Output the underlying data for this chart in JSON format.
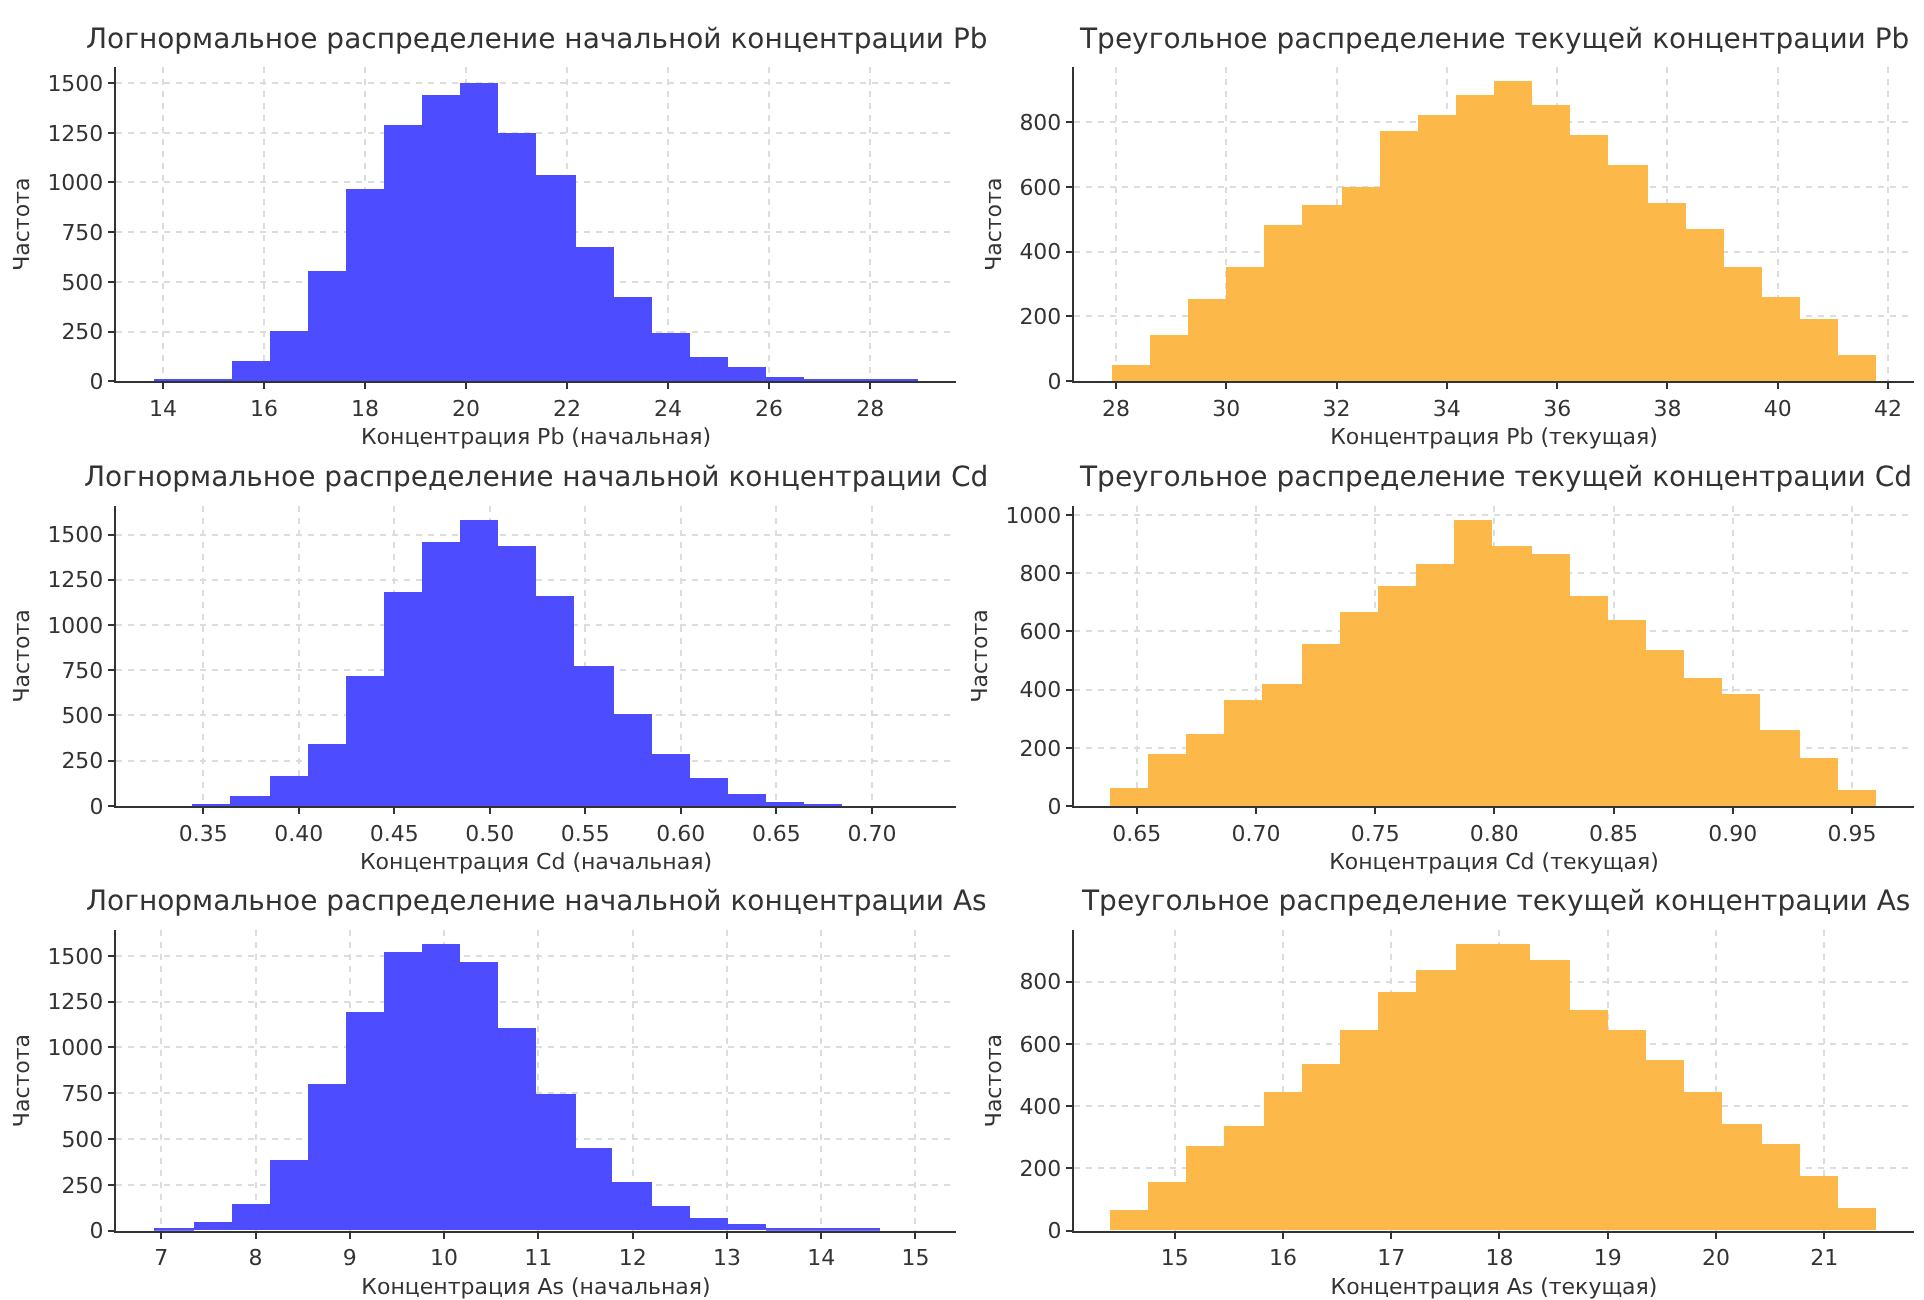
{
  "chart_data": [
    {
      "type": "histogram",
      "title": "Логнормальное распределение начальной концентрации Pb",
      "xlabel": "Концентрация Pb (начальная)",
      "ylabel": "Частота",
      "color": "#4d4dff",
      "grid": true,
      "bins": [
        13.83,
        14.59,
        15.35,
        16.1,
        16.86,
        17.62,
        18.37,
        19.13,
        19.89,
        20.64,
        21.4,
        22.16,
        22.92,
        23.67,
        24.43,
        25.19,
        25.94,
        26.7,
        27.46,
        28.21,
        28.95
      ],
      "values": [
        3,
        15,
        105,
        247,
        553,
        964,
        1289,
        1437,
        1503,
        1247,
        1036,
        671,
        424,
        243,
        122,
        66,
        20,
        6,
        5,
        2
      ],
      "xlim": [
        13.07,
        29.7
      ],
      "xticks": [
        14,
        16,
        18,
        20,
        22,
        24,
        26,
        28
      ],
      "ylim": [
        0,
        1580
      ],
      "yticks": [
        0,
        250,
        500,
        750,
        1000,
        1250,
        1500
      ]
    },
    {
      "type": "histogram",
      "title": "Треугольное распределение текущей концентрации Pb",
      "xlabel": "Концентрация Pb (текущая)",
      "ylabel": "Частота",
      "color": "#fdb84a",
      "grid": true,
      "bins": [
        27.93,
        28.62,
        29.32,
        30.01,
        30.7,
        31.39,
        32.09,
        32.78,
        33.47,
        34.16,
        34.86,
        35.55,
        36.24,
        36.93,
        37.63,
        38.32,
        39.01,
        39.7,
        40.4,
        41.09,
        41.78
      ],
      "values": [
        50,
        143,
        253,
        354,
        479,
        543,
        600,
        774,
        822,
        883,
        923,
        853,
        762,
        665,
        547,
        469,
        352,
        257,
        192,
        81
      ],
      "xlim": [
        27.24,
        42.47
      ],
      "xticks": [
        28,
        30,
        32,
        34,
        36,
        38,
        40,
        42
      ],
      "ylim": [
        0,
        969
      ],
      "yticks": [
        0,
        200,
        400,
        600,
        800
      ]
    },
    {
      "type": "histogram",
      "title": "Логнормальное распределение начальной концентрации Cd",
      "xlabel": "Концентрация Cd (начальная)",
      "ylabel": "Частота",
      "color": "#4d4dff",
      "grid": true,
      "bins": [
        0.3245,
        0.3445,
        0.3645,
        0.3845,
        0.4045,
        0.4245,
        0.4445,
        0.4645,
        0.4845,
        0.5045,
        0.5245,
        0.5445,
        0.5645,
        0.5845,
        0.6045,
        0.6245,
        0.6445,
        0.6645,
        0.6845,
        0.7045,
        0.7245
      ],
      "values": [
        1,
        8,
        55,
        170,
        345,
        722,
        1185,
        1462,
        1580,
        1435,
        1158,
        778,
        515,
        287,
        159,
        69,
        24,
        17,
        0,
        1
      ],
      "xlim": [
        0.3044,
        0.744
      ],
      "xticks": [
        {
          "value": 0.35,
          "label": "0.35"
        },
        {
          "value": 0.4,
          "label": "0.40"
        },
        {
          "value": 0.45,
          "label": "0.45"
        },
        {
          "value": 0.5,
          "label": "0.50"
        },
        {
          "value": 0.55,
          "label": "0.55"
        },
        {
          "value": 0.6,
          "label": "0.60"
        },
        {
          "value": 0.65,
          "label": "0.65"
        },
        {
          "value": 0.7,
          "label": "0.70"
        }
      ],
      "ylim": [
        0,
        1659
      ],
      "yticks": [
        0,
        250,
        500,
        750,
        1000,
        1250,
        1500
      ]
    },
    {
      "type": "histogram",
      "title": "Треугольное распределение текущей концентрации Cd",
      "xlabel": "Концентрация Cd (текущая)",
      "ylabel": "Частота",
      "color": "#fdb84a",
      "grid": true,
      "bins": [
        0.6386,
        0.6547,
        0.6707,
        0.6868,
        0.7029,
        0.719,
        0.735,
        0.7511,
        0.7672,
        0.7833,
        0.7993,
        0.8154,
        0.8315,
        0.8475,
        0.8636,
        0.8797,
        0.8958,
        0.9118,
        0.9279,
        0.944,
        0.96
      ],
      "values": [
        60,
        179,
        246,
        362,
        420,
        556,
        666,
        754,
        834,
        983,
        892,
        869,
        726,
        638,
        537,
        440,
        388,
        259,
        168,
        54
      ],
      "xlim": [
        0.6237,
        0.976
      ],
      "xticks": [
        {
          "value": 0.65,
          "label": "0.65"
        },
        {
          "value": 0.7,
          "label": "0.70"
        },
        {
          "value": 0.75,
          "label": "0.75"
        },
        {
          "value": 0.8,
          "label": "0.80"
        },
        {
          "value": 0.85,
          "label": "0.85"
        },
        {
          "value": 0.9,
          "label": "0.90"
        },
        {
          "value": 0.95,
          "label": "0.95"
        }
      ],
      "ylim": [
        0,
        1032
      ],
      "yticks": [
        0,
        200,
        400,
        600,
        800,
        1000
      ]
    },
    {
      "type": "histogram",
      "title": "Логнормальное распределение начальной концентрации As",
      "xlabel": "Концентрация As (начальная)",
      "ylabel": "Частота",
      "color": "#4d4dff",
      "grid": true,
      "bins": [
        6.93,
        7.34,
        7.74,
        8.15,
        8.55,
        8.96,
        9.36,
        9.77,
        10.17,
        10.58,
        10.98,
        11.39,
        11.79,
        12.2,
        12.6,
        13.01,
        13.41,
        13.82,
        14.22,
        14.63
      ],
      "values": [
        14,
        44,
        143,
        386,
        800,
        1192,
        1524,
        1561,
        1466,
        1104,
        748,
        454,
        263,
        133,
        65,
        34,
        14,
        5,
        2
      ],
      "xlim": [
        6.52,
        15.43
      ],
      "xticks": [
        7,
        8,
        9,
        10,
        11,
        12,
        13,
        14,
        15
      ],
      "ylim": [
        0,
        1639
      ],
      "yticks": [
        0,
        250,
        500,
        750,
        1000,
        1250,
        1500
      ]
    },
    {
      "type": "histogram",
      "title": "Треугольное распределение текущей концентрации As",
      "xlabel": "Концентрация As (текущая)",
      "ylabel": "Частота",
      "color": "#fdb84a",
      "grid": true,
      "bins": [
        14.4,
        14.75,
        15.11,
        15.46,
        15.82,
        16.17,
        16.52,
        16.88,
        17.23,
        17.59,
        17.94,
        18.29,
        18.65,
        19.0,
        19.36,
        19.71,
        20.06,
        20.42,
        20.77,
        21.13,
        21.48
      ],
      "values": [
        68,
        152,
        273,
        337,
        443,
        537,
        642,
        762,
        834,
        918,
        918,
        868,
        706,
        644,
        547,
        447,
        343,
        279,
        172,
        70
      ],
      "xlim": [
        14.07,
        21.83
      ],
      "xticks": [
        15,
        16,
        17,
        18,
        19,
        20,
        21
      ],
      "ylim": [
        0,
        964
      ],
      "yticks": [
        0,
        200,
        400,
        600,
        800
      ]
    }
  ]
}
